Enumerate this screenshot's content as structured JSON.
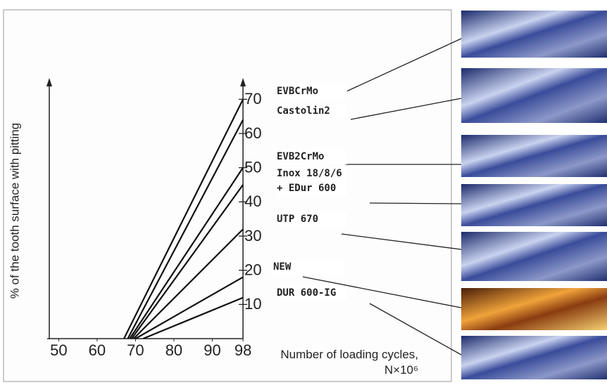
{
  "chart_data": {
    "type": "line",
    "y_label": "% of the tooth surface with pitting",
    "x_label": "Number of loading cycles, N×10⁶",
    "xlim": [
      47,
      100
    ],
    "xticks": [
      50,
      60,
      70,
      80,
      90,
      98
    ],
    "ylim": [
      0,
      75
    ],
    "yticks": [
      10,
      20,
      30,
      40,
      50,
      60,
      70
    ],
    "grid": false,
    "series": [
      {
        "name": "EVBCrMo",
        "color": "#111",
        "x": [
          67,
          98
        ],
        "values": [
          0,
          70
        ]
      },
      {
        "name": "Castolin2",
        "color": "#111",
        "x": [
          68,
          98
        ],
        "values": [
          0,
          64
        ]
      },
      {
        "name": "EVB2CrMo",
        "color": "#111",
        "x": [
          68.5,
          98
        ],
        "values": [
          0,
          50
        ]
      },
      {
        "name": "Inox 18/8/6 + EDur 600",
        "color": "#111",
        "x": [
          69,
          98
        ],
        "values": [
          0,
          45
        ]
      },
      {
        "name": "UTP 670",
        "color": "#111",
        "x": [
          69.5,
          98
        ],
        "values": [
          0,
          32
        ]
      },
      {
        "name": "NEW",
        "color": "#111",
        "x": [
          70,
          98
        ],
        "values": [
          0,
          18
        ]
      },
      {
        "name": "DUR 600-IG",
        "color": "#111",
        "x": [
          72,
          98
        ],
        "values": [
          0,
          12
        ]
      }
    ]
  }
}
